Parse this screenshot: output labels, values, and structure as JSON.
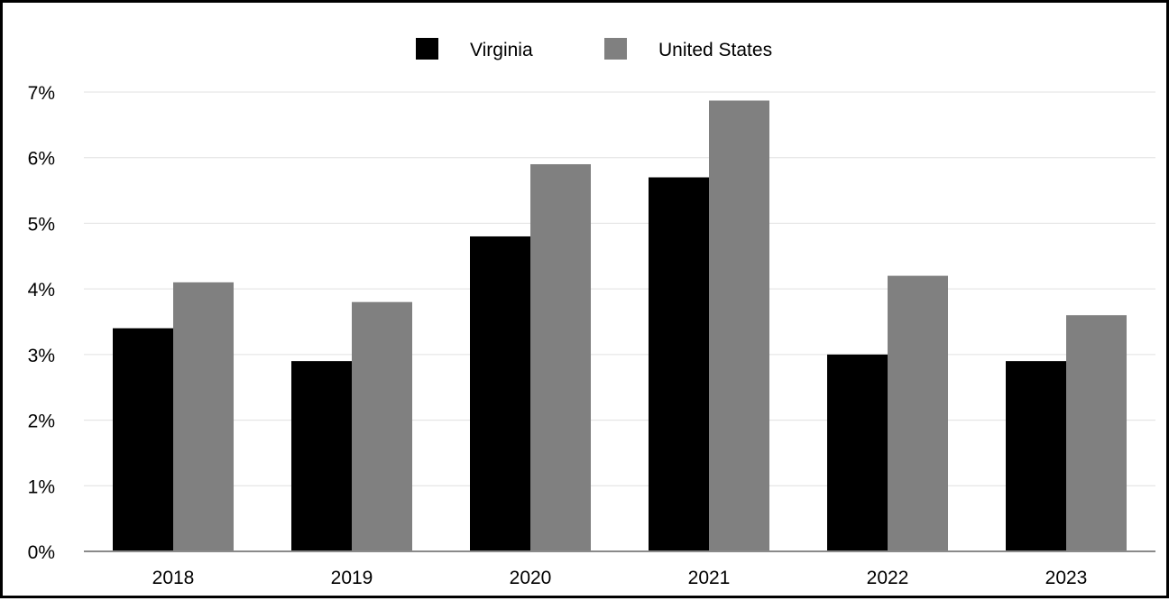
{
  "chart_data": {
    "type": "bar",
    "categories": [
      "2018",
      "2019",
      "2020",
      "2021",
      "2022",
      "2023"
    ],
    "series": [
      {
        "name": "Virginia",
        "color": "#000000",
        "values": [
          3.4,
          2.9,
          4.8,
          5.7,
          3.0,
          2.9
        ]
      },
      {
        "name": "United States",
        "color": "#808080",
        "values": [
          4.1,
          3.8,
          5.9,
          6.87,
          4.2,
          3.6
        ]
      }
    ],
    "y_ticks": [
      "0%",
      "1%",
      "2%",
      "3%",
      "4%",
      "5%",
      "6%",
      "7%"
    ],
    "ylim": [
      0,
      7
    ],
    "grid": true,
    "legend_position": "top-center",
    "title": "",
    "xlabel": "",
    "ylabel": ""
  }
}
